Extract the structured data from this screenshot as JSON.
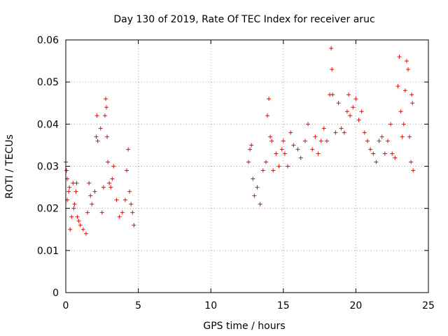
{
  "chart_data": {
    "type": "scatter",
    "title": "Day 130 of 2019, Rate Of TEC Index for receiver aruc",
    "xlabel": "GPS time / hours",
    "ylabel": "ROTI / TECUs",
    "xlim": [
      0,
      25
    ],
    "ylim": [
      0,
      0.06
    ],
    "xticks": [
      0,
      5,
      10,
      15,
      20,
      25
    ],
    "yticks": [
      0,
      0.01,
      0.02,
      0.03,
      0.04,
      0.05,
      0.06
    ],
    "xtick_labels": [
      "0",
      "5",
      "10",
      "15",
      "20",
      "25"
    ],
    "ytick_labels": [
      "0",
      "0.01",
      "0.02",
      "0.03",
      "0.04",
      "0.05",
      "0.06"
    ],
    "grid": true,
    "marker": "plus",
    "colors": {
      "series": "#ff0000",
      "axes": "#000000",
      "grid": "#a0a0a0"
    },
    "series": [
      {
        "values": [
          [
            0.0,
            0.031
          ],
          [
            0.05,
            0.029
          ],
          [
            0.1,
            0.027
          ],
          [
            0.1,
            0.022
          ],
          [
            0.2,
            0.024
          ],
          [
            0.25,
            0.025
          ],
          [
            0.3,
            0.015
          ],
          [
            0.4,
            0.018
          ],
          [
            0.5,
            0.026
          ],
          [
            0.55,
            0.02
          ],
          [
            0.6,
            0.021
          ],
          [
            0.7,
            0.024
          ],
          [
            0.75,
            0.026
          ],
          [
            0.8,
            0.018
          ],
          [
            0.9,
            0.017
          ],
          [
            1.0,
            0.016
          ],
          [
            1.2,
            0.015
          ],
          [
            1.4,
            0.014
          ],
          [
            1.5,
            0.019
          ],
          [
            1.6,
            0.026
          ],
          [
            1.7,
            0.023
          ],
          [
            1.8,
            0.021
          ],
          [
            2.0,
            0.024
          ],
          [
            2.1,
            0.037
          ],
          [
            2.15,
            0.042
          ],
          [
            2.2,
            0.036
          ],
          [
            2.4,
            0.039
          ],
          [
            2.5,
            0.019
          ],
          [
            2.6,
            0.025
          ],
          [
            2.7,
            0.042
          ],
          [
            2.75,
            0.046
          ],
          [
            2.8,
            0.044
          ],
          [
            2.85,
            0.037
          ],
          [
            2.9,
            0.031
          ],
          [
            3.0,
            0.026
          ],
          [
            3.1,
            0.025
          ],
          [
            3.2,
            0.027
          ],
          [
            3.3,
            0.03
          ],
          [
            3.5,
            0.022
          ],
          [
            3.7,
            0.018
          ],
          [
            3.9,
            0.019
          ],
          [
            4.1,
            0.022
          ],
          [
            4.2,
            0.029
          ],
          [
            4.3,
            0.034
          ],
          [
            4.4,
            0.024
          ],
          [
            4.5,
            0.021
          ],
          [
            4.6,
            0.019
          ],
          [
            4.7,
            0.016
          ],
          [
            12.6,
            0.031
          ],
          [
            12.7,
            0.034
          ],
          [
            12.8,
            0.035
          ],
          [
            12.9,
            0.027
          ],
          [
            13.0,
            0.023
          ],
          [
            13.2,
            0.025
          ],
          [
            13.4,
            0.021
          ],
          [
            13.6,
            0.029
          ],
          [
            13.8,
            0.031
          ],
          [
            13.9,
            0.042
          ],
          [
            14.0,
            0.046
          ],
          [
            14.1,
            0.037
          ],
          [
            14.2,
            0.036
          ],
          [
            14.3,
            0.029
          ],
          [
            14.5,
            0.033
          ],
          [
            14.7,
            0.03
          ],
          [
            14.9,
            0.034
          ],
          [
            15.0,
            0.036
          ],
          [
            15.1,
            0.033
          ],
          [
            15.3,
            0.03
          ],
          [
            15.5,
            0.038
          ],
          [
            15.7,
            0.035
          ],
          [
            16.0,
            0.034
          ],
          [
            16.2,
            0.032
          ],
          [
            16.5,
            0.036
          ],
          [
            16.7,
            0.04
          ],
          [
            17.0,
            0.034
          ],
          [
            17.2,
            0.037
          ],
          [
            17.4,
            0.033
          ],
          [
            17.6,
            0.036
          ],
          [
            17.8,
            0.039
          ],
          [
            18.0,
            0.036
          ],
          [
            18.2,
            0.047
          ],
          [
            18.3,
            0.058
          ],
          [
            18.35,
            0.053
          ],
          [
            18.4,
            0.047
          ],
          [
            18.6,
            0.038
          ],
          [
            18.8,
            0.045
          ],
          [
            19.0,
            0.039
          ],
          [
            19.2,
            0.038
          ],
          [
            19.4,
            0.043
          ],
          [
            19.5,
            0.047
          ],
          [
            19.6,
            0.042
          ],
          [
            19.8,
            0.044
          ],
          [
            20.0,
            0.046
          ],
          [
            20.2,
            0.041
          ],
          [
            20.4,
            0.043
          ],
          [
            20.6,
            0.038
          ],
          [
            20.8,
            0.036
          ],
          [
            21.0,
            0.034
          ],
          [
            21.2,
            0.033
          ],
          [
            21.4,
            0.031
          ],
          [
            21.6,
            0.036
          ],
          [
            21.8,
            0.037
          ],
          [
            22.0,
            0.033
          ],
          [
            22.2,
            0.036
          ],
          [
            22.4,
            0.04
          ],
          [
            22.5,
            0.033
          ],
          [
            22.7,
            0.032
          ],
          [
            22.9,
            0.049
          ],
          [
            23.0,
            0.056
          ],
          [
            23.1,
            0.043
          ],
          [
            23.2,
            0.037
          ],
          [
            23.3,
            0.04
          ],
          [
            23.4,
            0.048
          ],
          [
            23.5,
            0.055
          ],
          [
            23.6,
            0.053
          ],
          [
            23.7,
            0.037
          ],
          [
            23.8,
            0.031
          ],
          [
            23.85,
            0.047
          ],
          [
            23.9,
            0.045
          ],
          [
            23.95,
            0.029
          ]
        ]
      }
    ]
  }
}
